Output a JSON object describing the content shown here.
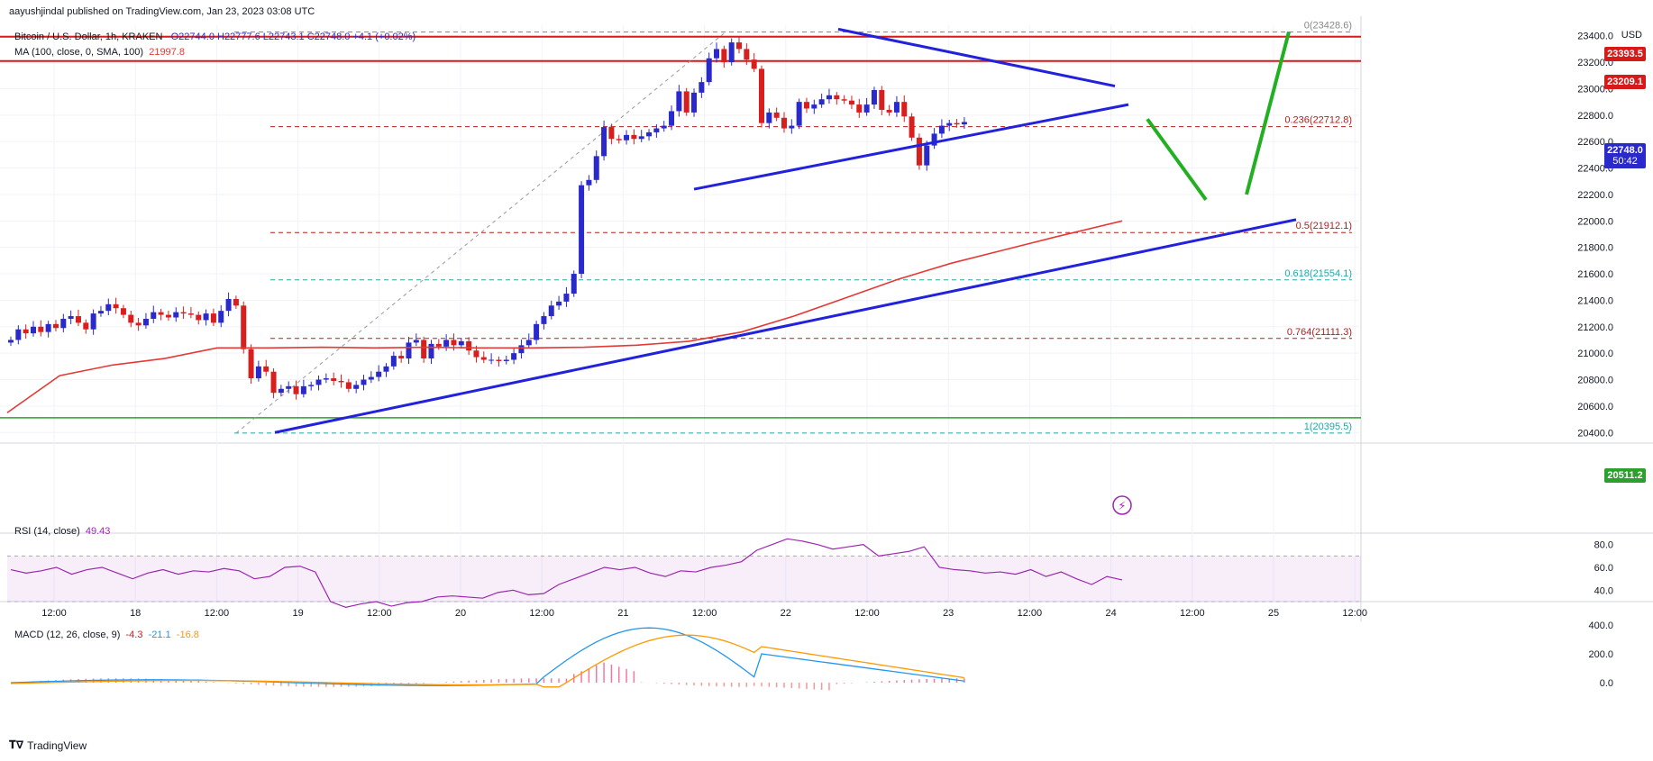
{
  "header": {
    "publisher": "aayushjindal published on TradingView.com, Jan 23, 2023 03:08 UTC",
    "symbol": "Bitcoin / U.S. Dollar, 1h, KRAKEN",
    "ohlc": "O22744.0  H22777.6  L22743.1  C22748.0  +4.1 (+0.02%)",
    "ma_label": "MA (100, close, 0, SMA, 100)",
    "ma_value": "21997.8",
    "currency": "USD"
  },
  "colors": {
    "up": "#2929cc",
    "down": "#d91e1e",
    "ma": "#e53935",
    "trend": "#2222dd",
    "projection": "#22b022",
    "resistance": "#d61a1a",
    "support": "#2ca02c",
    "rsi_line": "#9c27b0",
    "macd": "#2196f3",
    "signal": "#ff9800"
  },
  "price_labels": {
    "last": "22748.0",
    "countdown": "50:42",
    "resistance1": "23393.5",
    "resistance2": "23209.1",
    "support": "20511.2"
  },
  "rsi": {
    "label": "RSI (14, close)",
    "value": "49.43"
  },
  "macd": {
    "label": "MACD (12, 26, close, 9)",
    "v1": "-4.3",
    "v2": "-21.1",
    "v3": "-16.8"
  },
  "footer": {
    "brand": "TradingView"
  },
  "chart_data": {
    "type": "candlestick",
    "title": "Bitcoin / U.S. Dollar, 1h, KRAKEN",
    "x_ticks": [
      "12:00",
      "18",
      "12:00",
      "19",
      "12:00",
      "20",
      "12:00",
      "21",
      "12:00",
      "22",
      "12:00",
      "23",
      "12:00",
      "24",
      "12:00",
      "25",
      "12:00"
    ],
    "price_ticks": [
      20400,
      20600,
      20800,
      21000,
      21200,
      21400,
      21600,
      21800,
      22000,
      22200,
      22400,
      22600,
      22800,
      23000,
      23200,
      23400
    ],
    "ylim": [
      20320,
      23480
    ],
    "fib_levels": [
      {
        "label": "0(23428.6)",
        "price": 23428.6
      },
      {
        "label": "0.236(22712.8)",
        "price": 22712.8
      },
      {
        "label": "0.5(21912.1)",
        "price": 21912.1
      },
      {
        "label": "0.618(21554.1)",
        "price": 21554.1
      },
      {
        "label": "0.764(21111.3)",
        "price": 21111.3
      },
      {
        "label": "1(20395.5)",
        "price": 20395.5
      }
    ],
    "horizontal_levels": [
      23393.5,
      23209.1,
      20511.2
    ],
    "candles_close": [
      21100,
      21180,
      21150,
      21200,
      21160,
      21220,
      21190,
      21260,
      21280,
      21230,
      21180,
      21300,
      21320,
      21370,
      21340,
      21290,
      21230,
      21210,
      21260,
      21310,
      21290,
      21270,
      21310,
      21300,
      21290,
      21250,
      21300,
      21230,
      21320,
      21410,
      21360,
      21030,
      20810,
      20900,
      20860,
      20700,
      20730,
      20750,
      20690,
      20750,
      20760,
      20800,
      20810,
      20790,
      20780,
      20730,
      20760,
      20800,
      20820,
      20860,
      20900,
      20980,
      20960,
      21080,
      21100,
      20960,
      21070,
      21050,
      21100,
      21060,
      21090,
      21020,
      20970,
      20950,
      20950,
      20940,
      20950,
      21000,
      21060,
      21100,
      21220,
      21280,
      21360,
      21390,
      21450,
      21600,
      22270,
      22310,
      22490,
      22710,
      22620,
      22610,
      22650,
      22620,
      22640,
      22670,
      22700,
      22720,
      22830,
      22980,
      22820,
      22970,
      23050,
      23230,
      23300,
      23200,
      23350,
      23300,
      23220,
      23150,
      22740,
      22820,
      22780,
      22700,
      22720,
      22900,
      22850,
      22880,
      22920,
      22950,
      22920,
      22910,
      22880,
      22820,
      22880,
      22990,
      22840,
      22820,
      22900,
      22790,
      22630,
      22420,
      22570,
      22660,
      22720,
      22740,
      22730,
      22748
    ],
    "ma100": [
      [
        0,
        20550
      ],
      [
        50,
        20830
      ],
      [
        100,
        20910
      ],
      [
        150,
        20960
      ],
      [
        200,
        21040
      ],
      [
        250,
        21040
      ],
      [
        300,
        21045
      ],
      [
        350,
        21040
      ],
      [
        400,
        21045
      ],
      [
        450,
        21040
      ],
      [
        500,
        21040
      ],
      [
        550,
        21045
      ],
      [
        600,
        21060
      ],
      [
        650,
        21090
      ],
      [
        700,
        21160
      ],
      [
        750,
        21280
      ],
      [
        800,
        21420
      ],
      [
        850,
        21560
      ],
      [
        900,
        21680
      ],
      [
        950,
        21780
      ],
      [
        1000,
        21880
      ],
      [
        1063,
        22000
      ]
    ],
    "rsi_values": [
      58,
      55,
      57,
      60,
      54,
      58,
      60,
      55,
      50,
      55,
      58,
      54,
      57,
      56,
      59,
      57,
      50,
      52,
      60,
      61,
      56,
      30,
      25,
      28,
      30,
      26,
      29,
      30,
      34,
      35,
      34,
      33,
      38,
      40,
      36,
      37,
      45,
      50,
      55,
      60,
      58,
      60,
      55,
      52,
      57,
      56,
      60,
      62,
      65,
      75,
      80,
      85,
      83,
      80,
      76,
      78,
      80,
      70,
      72,
      74,
      78,
      60,
      58,
      57,
      55,
      56,
      54,
      58,
      52,
      56,
      50,
      45,
      52,
      49
    ],
    "rsi_ylim": [
      30,
      90
    ],
    "macd_ticks": [
      400,
      200,
      0
    ]
  }
}
